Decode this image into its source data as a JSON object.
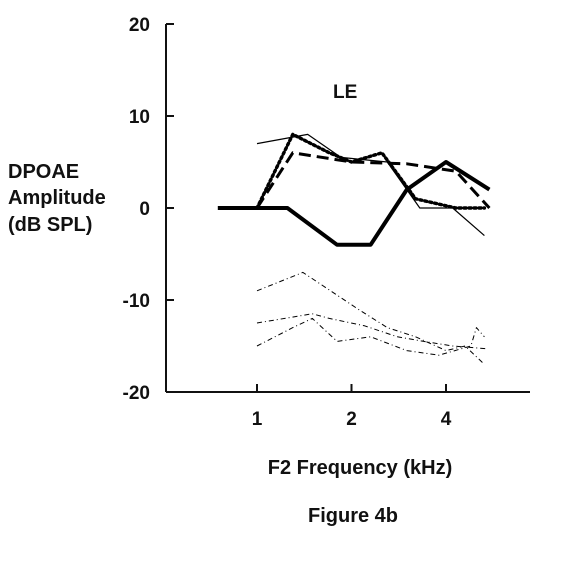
{
  "chart_data": {
    "type": "line",
    "title": "LE",
    "ylabel": [
      "DPOAE",
      "Amplitude",
      "(dB SPL)"
    ],
    "xlabel": "F2 Frequency (kHz)",
    "caption": "Figure 4b",
    "xscale": "log2",
    "xlim": [
      0.6,
      6.5
    ],
    "ylim": [
      -20,
      20
    ],
    "xticks": [
      1,
      2,
      4
    ],
    "xtick_labels": [
      "1",
      "2",
      "4"
    ],
    "yticks": [
      20,
      10,
      0,
      -10,
      -20
    ],
    "ytick_labels": [
      "20",
      "10",
      "0",
      "-10",
      "-20"
    ],
    "grid": false,
    "series": [
      {
        "style": "solid-thick",
        "color": "#000000",
        "points": [
          [
            0.75,
            0
          ],
          [
            1.0,
            0
          ],
          [
            1.25,
            0
          ],
          [
            1.8,
            -4
          ],
          [
            2.3,
            -4
          ],
          [
            3.0,
            2
          ],
          [
            4.0,
            5
          ],
          [
            5.5,
            2
          ]
        ]
      },
      {
        "style": "solid-thin",
        "color": "#000000",
        "points": [
          [
            1.0,
            7
          ],
          [
            1.45,
            8
          ],
          [
            1.85,
            5.5
          ],
          [
            2.6,
            5
          ],
          [
            3.3,
            0
          ],
          [
            4.2,
            0
          ],
          [
            5.3,
            -3
          ]
        ]
      },
      {
        "style": "dotted",
        "color": "#000000",
        "points": [
          [
            1.0,
            0
          ],
          [
            1.3,
            8
          ],
          [
            1.7,
            6
          ],
          [
            2.0,
            5
          ],
          [
            2.5,
            6
          ],
          [
            3.2,
            1
          ],
          [
            4.3,
            0
          ],
          [
            5.3,
            0
          ]
        ]
      },
      {
        "style": "dashed",
        "color": "#000000",
        "points": [
          [
            1.0,
            0
          ],
          [
            1.3,
            6
          ],
          [
            2.0,
            5
          ],
          [
            3.0,
            4.8
          ],
          [
            4.3,
            4
          ],
          [
            5.5,
            0
          ]
        ]
      },
      {
        "style": "dash-dot-noise",
        "color": "#000000",
        "points": [
          [
            1.0,
            -9
          ],
          [
            1.4,
            -7
          ],
          [
            2.1,
            -11
          ],
          [
            2.6,
            -13
          ],
          [
            3.2,
            -14
          ],
          [
            4.0,
            -15.5
          ],
          [
            4.6,
            -15
          ],
          [
            5.3,
            -17
          ]
        ]
      },
      {
        "style": "dash-dot-noise",
        "color": "#000000",
        "points": [
          [
            1.0,
            -12.5
          ],
          [
            1.5,
            -11.5
          ],
          [
            1.7,
            -12
          ],
          [
            2.2,
            -12.8
          ],
          [
            2.8,
            -14
          ],
          [
            3.4,
            -14.5
          ],
          [
            4.2,
            -15
          ],
          [
            5.4,
            -15.3
          ]
        ]
      },
      {
        "style": "dash-dot-noise",
        "color": "#000000",
        "points": [
          [
            1.0,
            -15
          ],
          [
            1.3,
            -13
          ],
          [
            1.5,
            -12
          ],
          [
            1.8,
            -14.5
          ],
          [
            2.3,
            -14
          ],
          [
            3.0,
            -15.5
          ],
          [
            3.8,
            -16
          ],
          [
            4.8,
            -15
          ],
          [
            5.0,
            -13
          ],
          [
            5.3,
            -14
          ]
        ]
      }
    ]
  }
}
